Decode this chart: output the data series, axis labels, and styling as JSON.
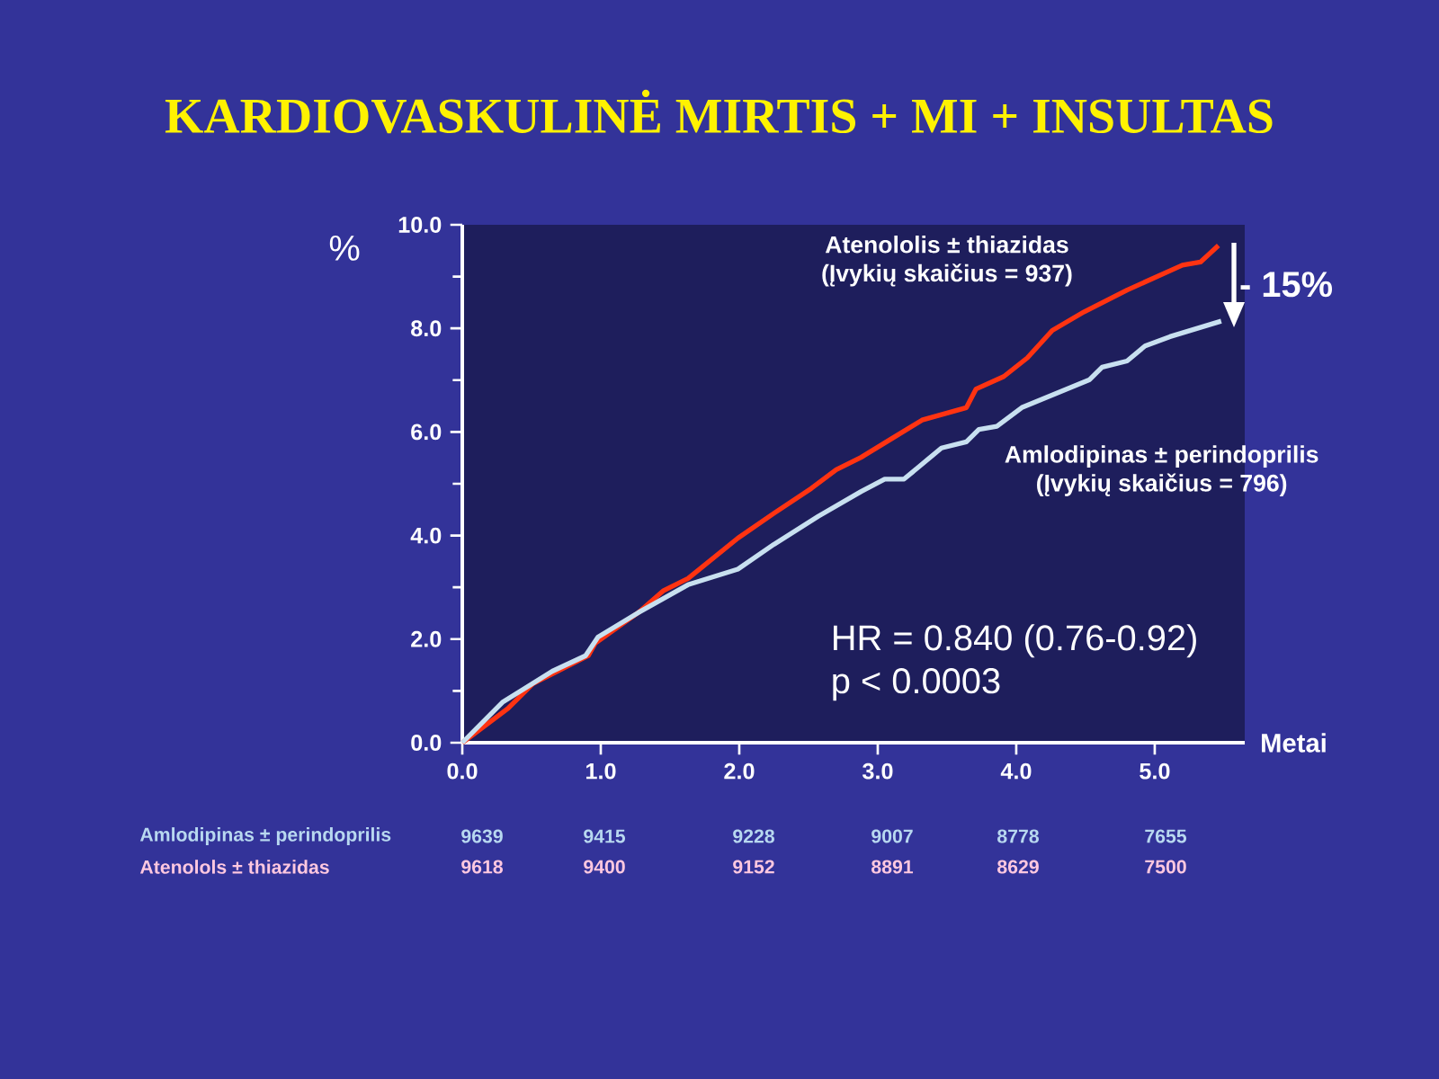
{
  "chart_data": {
    "type": "line",
    "title": "KARDIOVASKULINĖ MIRTIS + MI + INSULTAS",
    "xlabel": "Metai",
    "ylabel": "%",
    "xlim": [
      0,
      5.65
    ],
    "ylim": [
      0,
      10
    ],
    "xticks": [
      {
        "value": 0,
        "label": "0.0"
      },
      {
        "value": 1,
        "label": "1.0"
      },
      {
        "value": 2,
        "label": "2.0"
      },
      {
        "value": 3,
        "label": "3.0"
      },
      {
        "value": 4,
        "label": "4.0"
      },
      {
        "value": 5,
        "label": "5.0"
      }
    ],
    "yticks": [
      {
        "value": 0,
        "label": "0.0"
      },
      {
        "value": 2,
        "label": "2.0"
      },
      {
        "value": 4,
        "label": "4.0"
      },
      {
        "value": 6,
        "label": "6.0"
      },
      {
        "value": 8,
        "label": "8.0"
      },
      {
        "value": 10,
        "label": "10.0"
      }
    ],
    "legend": false,
    "grid": false,
    "marker": "none",
    "line_style": "solid",
    "series": [
      {
        "name": "Atenololis ± thiazidas",
        "color": "#ff3311",
        "x": [
          0,
          0.33,
          0.51,
          0.91,
          0.96,
          1.27,
          1.45,
          1.63,
          1.99,
          2.25,
          2.52,
          2.7,
          2.88,
          3.1,
          3.32,
          3.64,
          3.71,
          3.91,
          4.08,
          4.26,
          4.49,
          4.8,
          5.2,
          5.33,
          5.46
        ],
        "values": [
          0,
          0.66,
          1.14,
          1.68,
          1.92,
          2.51,
          2.93,
          3.17,
          3.95,
          4.43,
          4.91,
          5.27,
          5.51,
          5.87,
          6.23,
          6.47,
          6.83,
          7.07,
          7.43,
          7.96,
          8.32,
          8.74,
          9.22,
          9.28,
          9.6
        ]
      },
      {
        "name": "Amlodipinas ± perindoprilis",
        "color": "#c8e0f0",
        "x": [
          0,
          0.29,
          0.65,
          0.89,
          0.98,
          1.27,
          1.63,
          1.99,
          2.25,
          2.57,
          2.88,
          3.05,
          3.19,
          3.46,
          3.64,
          3.73,
          3.86,
          4.04,
          4.53,
          4.62,
          4.8,
          4.93,
          5.11,
          5.48
        ],
        "values": [
          0,
          0.78,
          1.38,
          1.68,
          2.04,
          2.51,
          3.05,
          3.35,
          3.83,
          4.37,
          4.85,
          5.09,
          5.09,
          5.69,
          5.81,
          6.05,
          6.11,
          6.47,
          7.01,
          7.25,
          7.37,
          7.66,
          7.84,
          8.14
        ]
      }
    ],
    "annotations": [
      "(Įvykių skaičius = 937)",
      "(Įvykių skaičius = 796)",
      "- 15%",
      "HR = 0.840 (0.76-0.92)",
      "p < 0.0003",
      "Amlodipinas ± perindoprilis",
      "9639",
      "9415",
      "9228",
      "9007",
      "8778",
      "7655",
      "Atenolols ± thiazidas",
      "9618",
      "9400",
      "9152",
      "8891",
      "8629",
      "7500"
    ]
  }
}
